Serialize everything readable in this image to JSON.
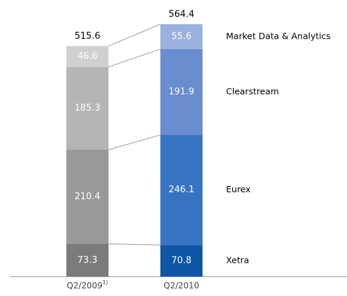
{
  "chart_data": {
    "type": "stacked_bar",
    "categories": [
      "Q2/2009",
      "Q2/2010"
    ],
    "footnote_marker": "1)",
    "series": [
      {
        "name": "Xetra",
        "colors": [
          "#7b7b7d",
          "#0e55a6"
        ],
        "values": [
          73.3,
          70.8
        ]
      },
      {
        "name": "Eurex",
        "colors": [
          "#99999b",
          "#3674c2"
        ],
        "values": [
          210.4,
          246.1
        ]
      },
      {
        "name": "Clearstream",
        "colors": [
          "#b5b5b7",
          "#6a8dcf"
        ],
        "values": [
          185.3,
          191.9
        ]
      },
      {
        "name": "Market Data & Analytics",
        "colors": [
          "#d0d0d2",
          "#9ab1e0"
        ],
        "values": [
          46.6,
          55.6
        ]
      }
    ],
    "totals": [
      515.6,
      564.4
    ]
  }
}
